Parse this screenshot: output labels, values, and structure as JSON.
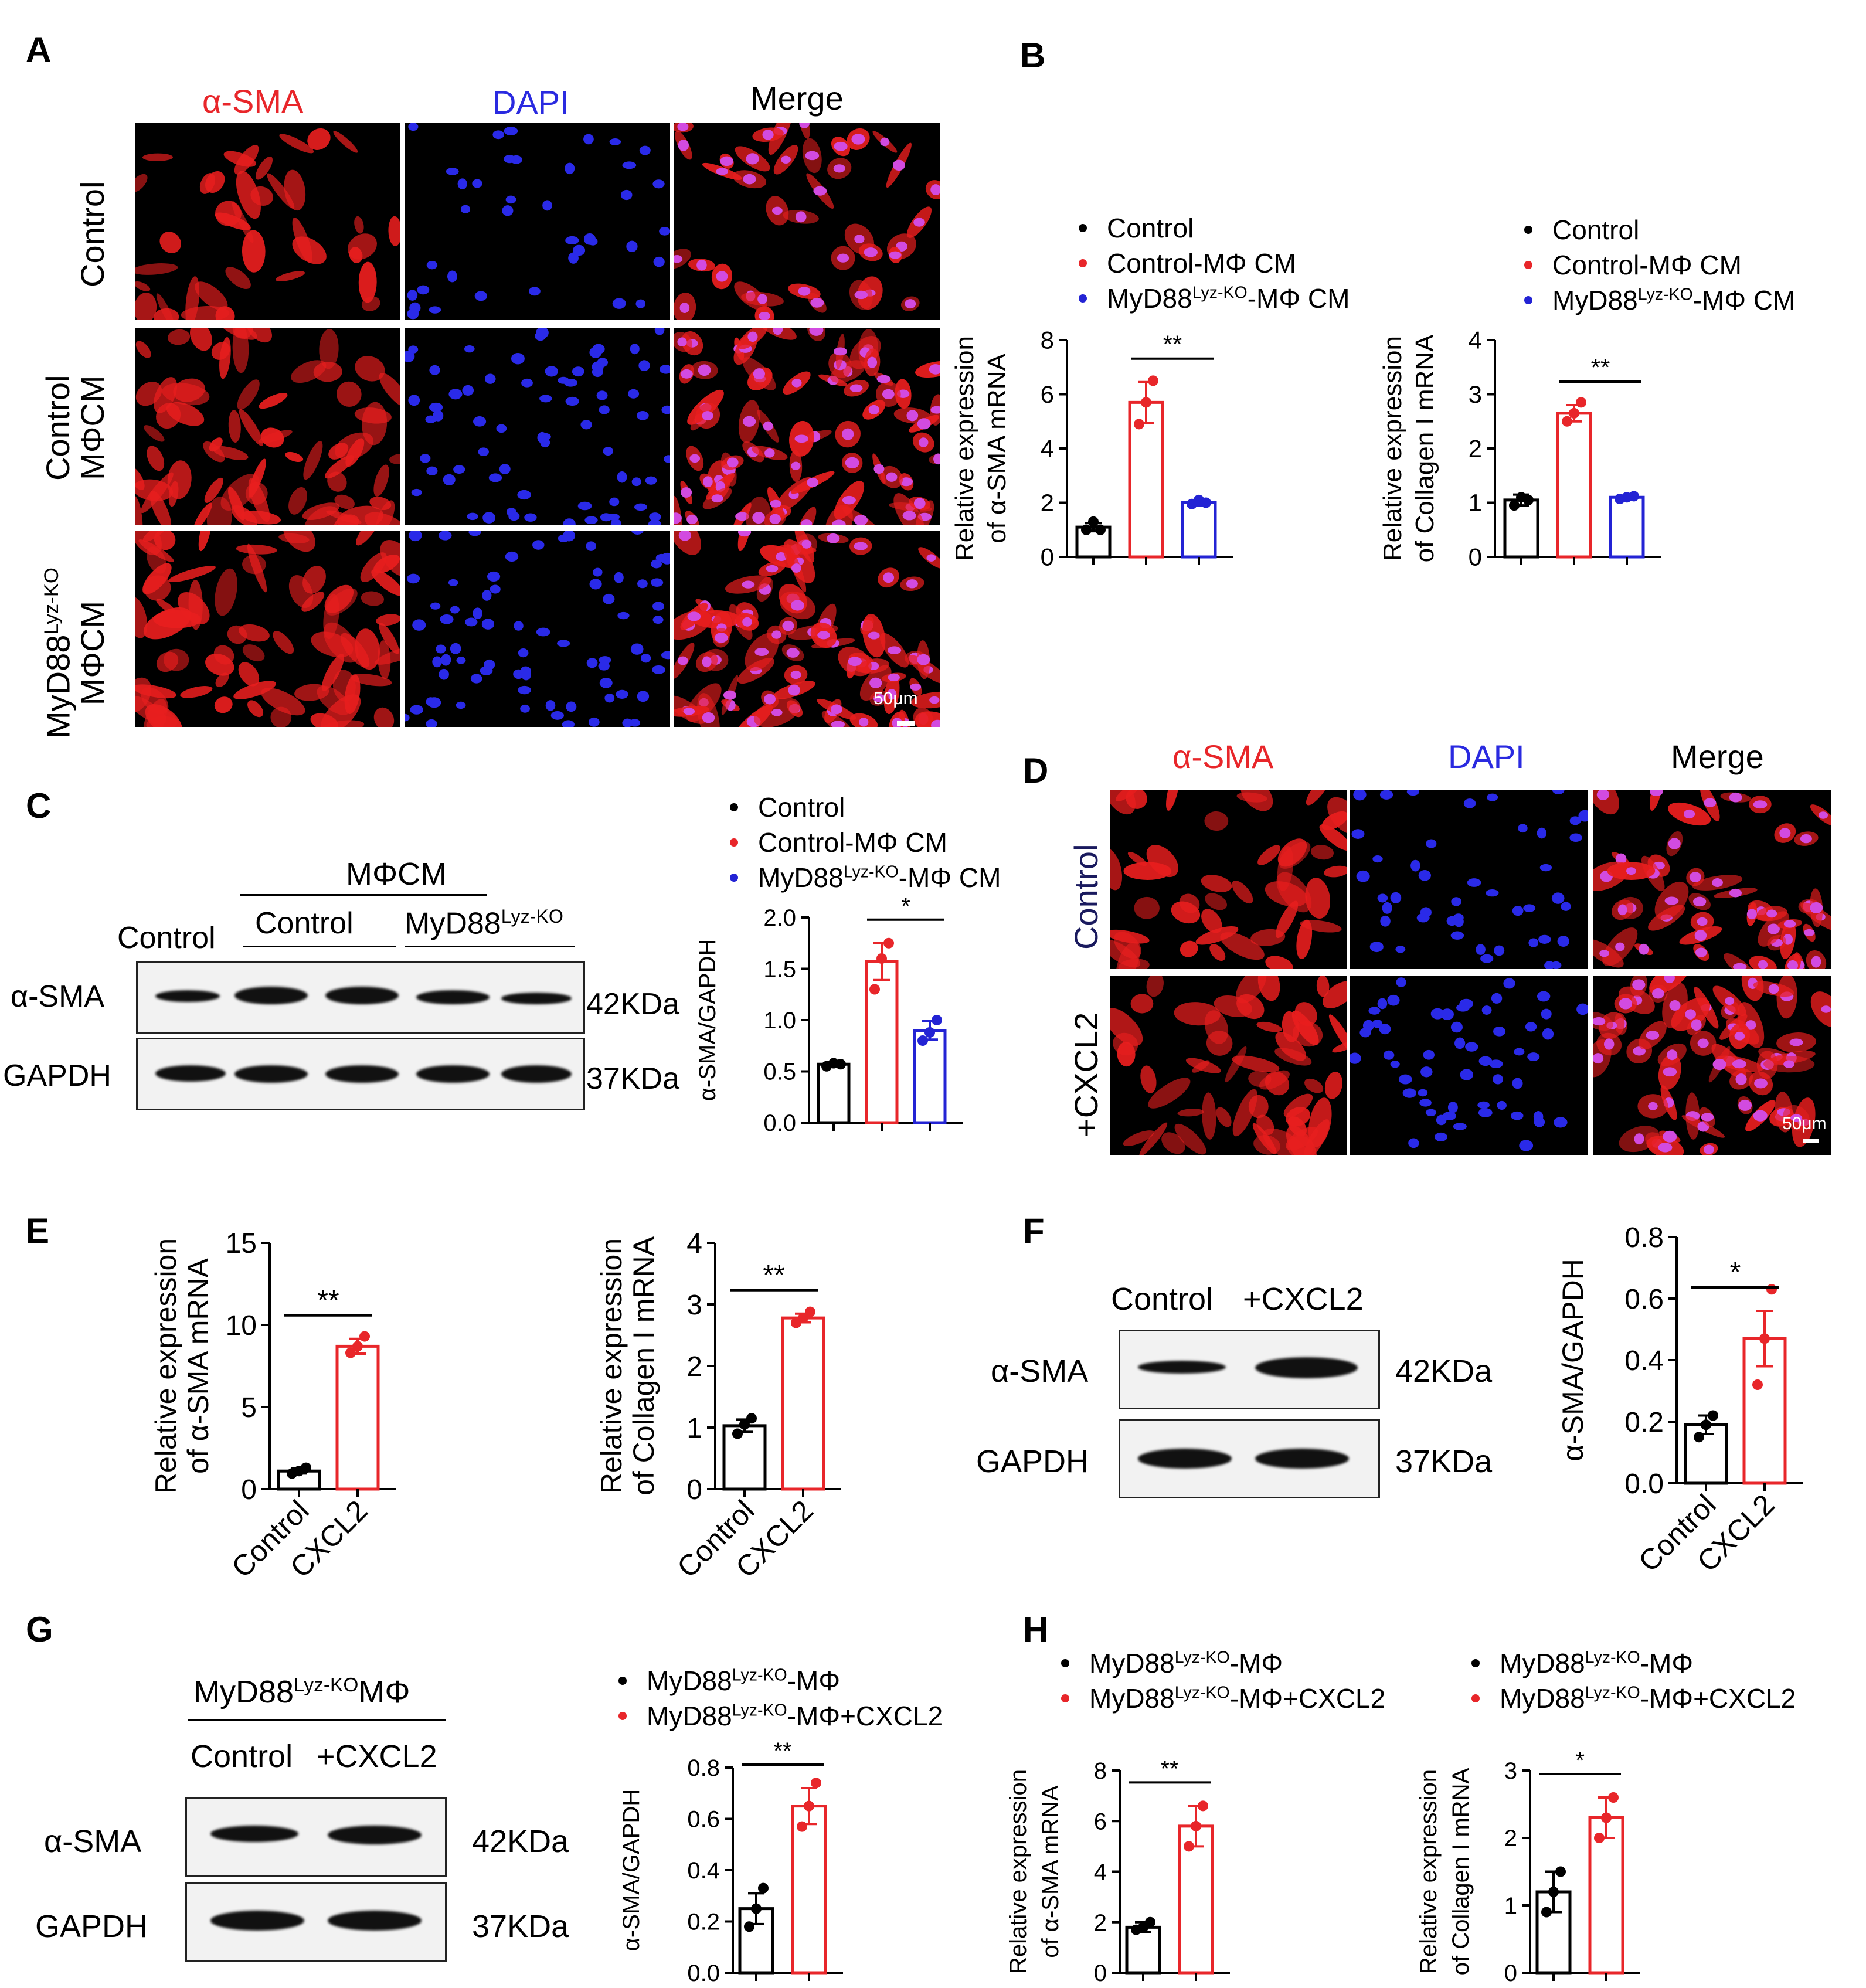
{
  "colors": {
    "control": "#000000",
    "control_mphi_cm": "#e8262a",
    "myd88_cm": "#2323d4",
    "asma_red": "#e8262a",
    "dapi_blue": "#2a2ae0"
  },
  "panel_A": {
    "letter": "A",
    "columns": [
      "α-SMA",
      "DAPI",
      "Merge"
    ],
    "rows": [
      {
        "lines": [
          "Control"
        ]
      },
      {
        "lines": [
          "Control",
          "MΦCM"
        ]
      },
      {
        "line1_base": "MyD88",
        "line1_sup": "Lyz-KO",
        "line2": "MΦCM"
      }
    ],
    "scale_bar": "50μm"
  },
  "panel_B": {
    "letter": "B",
    "legend_1": [
      "Control",
      "Control-MΦ CM"
    ],
    "legend_2": [
      "Control",
      "Control-MΦ CM"
    ],
    "myd88_base": "MyD88",
    "myd88_sup": "Lyz-KO",
    "myd88_suffix": "-MΦ CM"
  },
  "panel_C": {
    "letter": "C",
    "header": "MΦCM",
    "lanes": [
      "Control",
      "Control"
    ],
    "myd88_base": "MyD88",
    "myd88_sup": "Lyz-KO",
    "bands": [
      "α-SMA",
      "GAPDH"
    ],
    "sizes": [
      "42KDa",
      "37KDa"
    ],
    "legend": [
      "Control",
      "Control-MΦ CM"
    ],
    "legend_myd88_suffix": "-MΦ CM"
  },
  "panel_D": {
    "letter": "D",
    "columns": [
      "α-SMA",
      "DAPI",
      "Merge"
    ],
    "rows": [
      "Control",
      "+CXCL2"
    ],
    "scale_bar": "50μm"
  },
  "panel_E": {
    "letter": "E"
  },
  "panel_F": {
    "letter": "F",
    "lanes": [
      "Control",
      "+CXCL2"
    ],
    "bands": [
      "α-SMA",
      "GAPDH"
    ],
    "sizes": [
      "42KDa",
      "37KDa"
    ]
  },
  "panel_G": {
    "letter": "G",
    "header_base": "MyD88",
    "header_sup": "Lyz-KO",
    "header_suffix": "MΦ",
    "lanes": [
      "Control",
      "+CXCL2"
    ],
    "bands": [
      "α-SMA",
      "GAPDH"
    ],
    "sizes": [
      "42KDa",
      "37KDa"
    ],
    "legend_base": "MyD88",
    "legend_sup": "Lyz-KO",
    "legend_suffix_1": "-MΦ",
    "legend_suffix_2": "-MΦ+CXCL2"
  },
  "panel_H": {
    "letter": "H"
  },
  "chart_data": [
    {
      "id": "B1",
      "type": "bar",
      "ylabel": [
        "Relative expression",
        "of α-SMA mRNA"
      ],
      "ylim": [
        0,
        8
      ],
      "yticks": [
        "0",
        "2",
        "4",
        "6",
        "8"
      ],
      "categories": [
        "Control",
        "Control-MΦ CM",
        "MyD88Lyz-KO-MΦ CM"
      ],
      "values": [
        1.1,
        5.7,
        2.0
      ],
      "sem": [
        0.15,
        0.75,
        0.1
      ],
      "points": [
        [
          1.0,
          1.3,
          1.0
        ],
        [
          4.9,
          5.7,
          6.5
        ],
        [
          1.95,
          2.1,
          2.0
        ]
      ],
      "colors": [
        "#000000",
        "#e8262a",
        "#2323d4"
      ],
      "sig": [
        {
          "from": 1,
          "to": 2,
          "label": "**"
        }
      ],
      "xticklabels": []
    },
    {
      "id": "B2",
      "type": "bar",
      "ylabel": [
        "Relative expression",
        "of Collagen I mRNA"
      ],
      "ylim": [
        0,
        4
      ],
      "yticks": [
        "0",
        "1",
        "2",
        "3",
        "4"
      ],
      "categories": [
        "Control",
        "Control-MΦ CM",
        "MyD88Lyz-KO-MΦ CM"
      ],
      "values": [
        1.05,
        2.65,
        1.1
      ],
      "sem": [
        0.1,
        0.15,
        0.03
      ],
      "points": [
        [
          0.95,
          1.1,
          1.05
        ],
        [
          2.5,
          2.65,
          2.85
        ],
        [
          1.07,
          1.1,
          1.12
        ]
      ],
      "colors": [
        "#000000",
        "#e8262a",
        "#2323d4"
      ],
      "sig": [
        {
          "from": 1,
          "to": 2,
          "label": "**"
        }
      ],
      "xticklabels": []
    },
    {
      "id": "C",
      "type": "bar",
      "ylabel": [
        "α-SMA/GAPDH"
      ],
      "ylim": [
        0,
        2.0
      ],
      "yticks": [
        "0.0",
        "0.5",
        "1.0",
        "1.5",
        "2.0"
      ],
      "categories": [
        "Control",
        "Control-MΦ CM",
        "MyD88Lyz-KO-MΦ CM"
      ],
      "values": [
        0.57,
        1.57,
        0.9
      ],
      "sem": [
        0.02,
        0.18,
        0.09
      ],
      "points": [
        [
          0.55,
          0.58,
          0.57
        ],
        [
          1.3,
          1.6,
          1.75
        ],
        [
          0.8,
          0.88,
          1.0
        ]
      ],
      "colors": [
        "#000000",
        "#e8262a",
        "#2323d4"
      ],
      "sig": [
        {
          "from": 1,
          "to": 2,
          "label": "*"
        }
      ],
      "xticklabels": []
    },
    {
      "id": "E1",
      "type": "bar",
      "ylabel": [
        "Relative expression",
        "of α-SMA mRNA"
      ],
      "ylim": [
        0,
        15
      ],
      "yticks": [
        "0",
        "5",
        "10",
        "15"
      ],
      "categories": [
        "Control",
        "CXCL2"
      ],
      "values": [
        1.1,
        8.7
      ],
      "sem": [
        0.15,
        0.45
      ],
      "points": [
        [
          0.95,
          1.1,
          1.3
        ],
        [
          8.3,
          8.7,
          9.3
        ]
      ],
      "colors": [
        "#000000",
        "#e8262a"
      ],
      "sig": [
        {
          "from": 0,
          "to": 1,
          "label": "**"
        }
      ],
      "xticklabels": [
        "Control",
        "CXCL2"
      ]
    },
    {
      "id": "E2",
      "type": "bar",
      "ylabel": [
        "Relative expression",
        "of Collagen I mRNA"
      ],
      "ylim": [
        0,
        4
      ],
      "yticks": [
        "0",
        "1",
        "2",
        "3",
        "4"
      ],
      "categories": [
        "Control",
        "CXCL2"
      ],
      "values": [
        1.03,
        2.78
      ],
      "sem": [
        0.1,
        0.07
      ],
      "points": [
        [
          0.9,
          1.05,
          1.15
        ],
        [
          2.7,
          2.78,
          2.88
        ]
      ],
      "colors": [
        "#000000",
        "#e8262a"
      ],
      "sig": [
        {
          "from": 0,
          "to": 1,
          "label": "**"
        }
      ],
      "xticklabels": [
        "Control",
        "CXCL2"
      ]
    },
    {
      "id": "F",
      "type": "bar",
      "ylabel": [
        "α-SMA/GAPDH"
      ],
      "ylim": [
        0,
        0.8
      ],
      "yticks": [
        "0.0",
        "0.2",
        "0.4",
        "0.6",
        "0.8"
      ],
      "categories": [
        "Control",
        "CXCL2"
      ],
      "values": [
        0.19,
        0.47
      ],
      "sem": [
        0.03,
        0.09
      ],
      "points": [
        [
          0.15,
          0.19,
          0.22
        ],
        [
          0.32,
          0.47,
          0.63
        ]
      ],
      "colors": [
        "#000000",
        "#e8262a"
      ],
      "sig": [
        {
          "from": 0,
          "to": 1,
          "label": "*"
        }
      ],
      "xticklabels": [
        "Control",
        "CXCL2"
      ]
    },
    {
      "id": "G",
      "type": "bar",
      "ylabel": [
        "α-SMA/GAPDH"
      ],
      "ylim": [
        0,
        0.8
      ],
      "yticks": [
        "0.0",
        "0.2",
        "0.4",
        "0.6",
        "0.8"
      ],
      "categories": [
        "MyD88Lyz-KO-MΦ",
        "MyD88Lyz-KO-MΦ+CXCL2"
      ],
      "values": [
        0.25,
        0.65
      ],
      "sem": [
        0.06,
        0.07
      ],
      "points": [
        [
          0.18,
          0.25,
          0.33
        ],
        [
          0.57,
          0.65,
          0.74
        ]
      ],
      "colors": [
        "#000000",
        "#e8262a"
      ],
      "sig": [
        {
          "from": 0,
          "to": 1,
          "label": "**"
        }
      ],
      "xticklabels": []
    },
    {
      "id": "H1",
      "type": "bar",
      "ylabel": [
        "Relative expression",
        "of α-SMA mRNA"
      ],
      "ylim": [
        0,
        8
      ],
      "yticks": [
        "0",
        "2",
        "4",
        "6",
        "8"
      ],
      "categories": [
        "MyD88Lyz-KO-MΦ",
        "MyD88Lyz-KO-MΦ+CXCL2"
      ],
      "values": [
        1.8,
        5.8
      ],
      "sem": [
        0.2,
        0.8
      ],
      "points": [
        [
          1.7,
          1.8,
          2.0
        ],
        [
          5.0,
          5.8,
          6.6
        ]
      ],
      "colors": [
        "#000000",
        "#e8262a"
      ],
      "sig": [
        {
          "from": 0,
          "to": 1,
          "label": "**"
        }
      ],
      "xticklabels": []
    },
    {
      "id": "H2",
      "type": "bar",
      "ylabel": [
        "Relative expression",
        "of Collagen I mRNA"
      ],
      "ylim": [
        0,
        3
      ],
      "yticks": [
        "0",
        "1",
        "2",
        "3"
      ],
      "categories": [
        "MyD88Lyz-KO-MΦ",
        "MyD88Lyz-KO-MΦ+CXCL2"
      ],
      "values": [
        1.2,
        2.3
      ],
      "sem": [
        0.3,
        0.3
      ],
      "points": [
        [
          0.9,
          1.2,
          1.5
        ],
        [
          2.0,
          2.3,
          2.6
        ]
      ],
      "colors": [
        "#000000",
        "#e8262a"
      ],
      "sig": [
        {
          "from": 0,
          "to": 1,
          "label": "*"
        }
      ],
      "xticklabels": []
    }
  ]
}
